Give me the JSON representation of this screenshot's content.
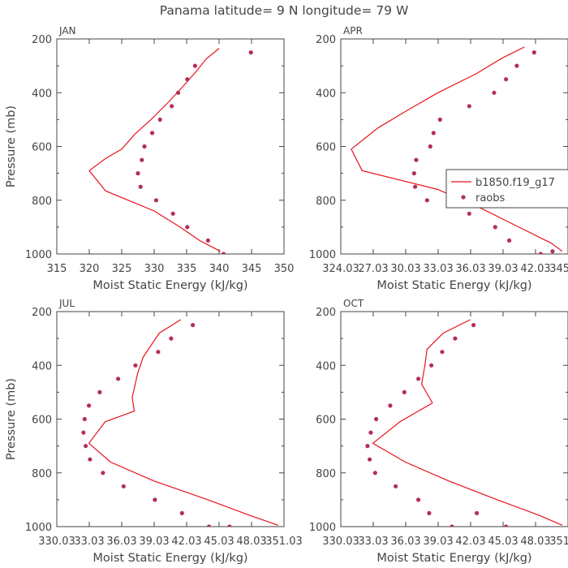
{
  "suptitle": "Panama  latitude= 9 N longitude= 79 W",
  "legend": {
    "model_label": "b1850.f19_g17",
    "obs_label": "raobs"
  },
  "colors": {
    "model": "#e8131c",
    "obs": "#b52e5a",
    "axis": "#444444",
    "text": "#444444"
  },
  "chart_data": [
    {
      "type": "line",
      "title": "JAN",
      "xlabel": "Moist Static Energy (kJ/kg)",
      "ylabel": "Pressure (mb)",
      "xlim": [
        315,
        350
      ],
      "ylim": [
        1000,
        200
      ],
      "xticks": [
        "315",
        "320",
        "325",
        "330",
        "335",
        "340",
        "345",
        "350"
      ],
      "yticks": [
        "200",
        "400",
        "600",
        "800",
        "1000"
      ],
      "series": [
        {
          "name": "b1850.f19_g17",
          "x": [
            340.0,
            338.0,
            336.5,
            334.5,
            332.0,
            329.5,
            327.0,
            325.0,
            322.5,
            320.0,
            322.5,
            330.0,
            334.0,
            337.0,
            340.2
          ],
          "y": [
            235,
            275,
            320,
            375,
            440,
            500,
            555,
            610,
            645,
            690,
            765,
            840,
            900,
            950,
            990
          ]
        },
        {
          "name": "raobs",
          "x": [
            344.9,
            336.3,
            335.1,
            333.7,
            332.7,
            330.9,
            329.7,
            328.5,
            328.1,
            327.5,
            327.9,
            330.3,
            332.9,
            335.1,
            338.3,
            340.7
          ],
          "y": [
            250,
            300,
            350,
            400,
            450,
            500,
            550,
            600,
            650,
            700,
            750,
            800,
            850,
            900,
            950,
            1000
          ]
        }
      ]
    },
    {
      "type": "line",
      "title": "APR",
      "xlabel": "Moist Static Energy (kJ/kg)",
      "ylabel": "Pressure (mb)",
      "xlim": [
        324.03,
        345.03
      ],
      "ylim": [
        1000,
        200
      ],
      "xticks": [
        "324.03",
        "27.03",
        "30.03",
        "33.03",
        "36.03",
        "39.03",
        "42.03",
        "345.03"
      ],
      "yticks": [
        "200",
        "400",
        "600",
        "800",
        "1000"
      ],
      "series": [
        {
          "name": "b1850.f19_g17",
          "x": [
            341.0,
            339.0,
            336.5,
            333.0,
            330.0,
            327.5,
            325.0,
            326.0,
            333.0,
            337.0,
            340.5,
            343.5,
            344.5
          ],
          "y": [
            230,
            270,
            330,
            400,
            470,
            530,
            610,
            690,
            760,
            830,
            900,
            960,
            990
          ]
        },
        {
          "name": "raobs",
          "x": [
            341.9,
            340.3,
            339.3,
            338.2,
            335.9,
            333.2,
            332.6,
            332.3,
            331.0,
            330.8,
            330.9,
            332.0,
            335.9,
            338.3,
            339.6,
            342.5,
            343.6
          ],
          "y": [
            250,
            300,
            350,
            400,
            450,
            500,
            550,
            600,
            650,
            700,
            750,
            800,
            850,
            900,
            950,
            1000,
            990
          ]
        }
      ]
    },
    {
      "type": "line",
      "title": "JUL",
      "xlabel": "Moist Static Energy (kJ/kg)",
      "ylabel": "Pressure (mb)",
      "xlim": [
        330.03,
        351.03
      ],
      "ylim": [
        1000,
        200
      ],
      "xticks": [
        "330.03",
        "33.03",
        "36.03",
        "39.03",
        "42.03",
        "45.03",
        "48.03",
        "351.03"
      ],
      "yticks": [
        "200",
        "400",
        "600",
        "800",
        "1000"
      ],
      "series": [
        {
          "name": "b1850.f19_g17",
          "x": [
            341.5,
            339.5,
            338.0,
            337.5,
            337.0,
            337.2,
            334.5,
            333.0,
            335.0,
            339.0,
            344.0,
            348.0,
            350.5
          ],
          "y": [
            230,
            280,
            370,
            430,
            520,
            570,
            610,
            690,
            760,
            830,
            900,
            960,
            995
          ]
        },
        {
          "name": "raobs",
          "x": [
            342.6,
            340.6,
            339.4,
            337.3,
            335.7,
            334.0,
            333.0,
            332.6,
            332.5,
            332.7,
            333.1,
            334.3,
            336.2,
            339.1,
            341.6,
            344.1,
            346.0
          ],
          "y": [
            250,
            300,
            350,
            400,
            450,
            500,
            550,
            600,
            650,
            700,
            750,
            800,
            850,
            900,
            950,
            1000,
            1000
          ]
        }
      ]
    },
    {
      "type": "line",
      "title": "OCT",
      "xlabel": "Moist Static Energy (kJ/kg)",
      "ylabel": "Pressure (mb)",
      "xlim": [
        330.03,
        351.03
      ],
      "ylim": [
        1000,
        200
      ],
      "xticks": [
        "330.03",
        "33.03",
        "36.03",
        "39.03",
        "42.03",
        "45.03",
        "48.03",
        "351.03"
      ],
      "yticks": [
        "200",
        "400",
        "600",
        "800",
        "1000"
      ],
      "series": [
        {
          "name": "b1850.f19_g17",
          "x": [
            342.0,
            339.5,
            338.0,
            337.8,
            337.5,
            338.5,
            335.5,
            333.0,
            336.0,
            340.0,
            344.5,
            348.5,
            350.5
          ],
          "y": [
            230,
            280,
            340,
            400,
            470,
            540,
            610,
            690,
            760,
            830,
            900,
            960,
            995
          ]
        },
        {
          "name": "raobs",
          "x": [
            342.3,
            340.6,
            339.4,
            338.4,
            337.2,
            335.9,
            334.6,
            333.3,
            332.8,
            332.5,
            332.7,
            333.2,
            335.1,
            337.2,
            338.2,
            340.3,
            342.6,
            345.3
          ],
          "y": [
            250,
            300,
            350,
            400,
            450,
            500,
            550,
            600,
            650,
            700,
            750,
            800,
            850,
            900,
            950,
            1000,
            950,
            1000
          ]
        }
      ]
    }
  ]
}
